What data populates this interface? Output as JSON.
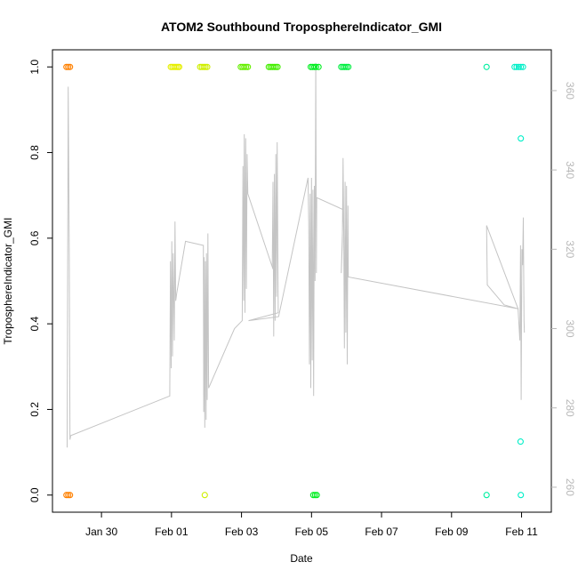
{
  "chart_data": {
    "type": "scatter",
    "title": "ATOM2 Southbound TroposphereIndicator_GMI",
    "xlabel": "Date",
    "ylabel": "TroposphereIndicator_GMI",
    "x_unit": "days from Jan 28",
    "xlim": [
      0.6,
      14.85
    ],
    "ylim": [
      -0.04,
      1.04
    ],
    "y2lim": [
      253.7,
      370.3
    ],
    "x_ticks": [
      {
        "value": 2,
        "label": "Jan 30"
      },
      {
        "value": 4,
        "label": "Feb 01"
      },
      {
        "value": 6,
        "label": "Feb 03"
      },
      {
        "value": 8,
        "label": "Feb 05"
      },
      {
        "value": 10,
        "label": "Feb 07"
      },
      {
        "value": 12,
        "label": "Feb 09"
      },
      {
        "value": 14,
        "label": "Feb 11"
      }
    ],
    "y_ticks": [
      {
        "value": 0.0,
        "label": "0.0"
      },
      {
        "value": 0.2,
        "label": "0.2"
      },
      {
        "value": 0.4,
        "label": "0.4"
      },
      {
        "value": 0.6,
        "label": "0.6"
      },
      {
        "value": 0.8,
        "label": "0.8"
      },
      {
        "value": 1.0,
        "label": "1.0"
      }
    ],
    "y2_ticks": [
      {
        "value": 260,
        "label": "260"
      },
      {
        "value": 280,
        "label": "280"
      },
      {
        "value": 300,
        "label": "300"
      },
      {
        "value": 320,
        "label": "320"
      },
      {
        "value": 340,
        "label": "340"
      },
      {
        "value": 360,
        "label": "360"
      }
    ],
    "secondary_series": {
      "color": "#c4c4c4",
      "axis": "right",
      "points": [
        [
          1.02,
          270
        ],
        [
          1.05,
          361
        ],
        [
          1.08,
          318
        ],
        [
          1.1,
          272
        ],
        [
          1.12,
          273
        ],
        [
          3.95,
          283
        ],
        [
          3.97,
          317
        ],
        [
          3.99,
          290
        ],
        [
          4.01,
          322
        ],
        [
          4.03,
          293
        ],
        [
          4.05,
          319
        ],
        [
          4.08,
          297
        ],
        [
          4.1,
          327
        ],
        [
          4.12,
          307
        ],
        [
          4.15,
          309
        ],
        [
          4.4,
          322
        ],
        [
          4.9,
          321
        ],
        [
          4.91,
          321
        ],
        [
          4.92,
          279
        ],
        [
          4.93,
          318
        ],
        [
          4.95,
          275
        ],
        [
          4.97,
          317
        ],
        [
          4.99,
          277
        ],
        [
          5.0,
          319
        ],
        [
          5.02,
          282
        ],
        [
          5.04,
          324
        ],
        [
          5.06,
          285
        ],
        [
          5.8,
          300
        ],
        [
          6.02,
          302
        ],
        [
          6.04,
          341
        ],
        [
          6.06,
          307
        ],
        [
          6.08,
          349
        ],
        [
          6.1,
          304
        ],
        [
          6.12,
          348
        ],
        [
          6.14,
          310
        ],
        [
          6.16,
          344
        ],
        [
          6.18,
          334
        ],
        [
          6.9,
          315
        ],
        [
          6.88,
          316
        ],
        [
          6.9,
          337
        ],
        [
          6.92,
          298
        ],
        [
          6.94,
          339
        ],
        [
          6.96,
          302
        ],
        [
          6.98,
          344
        ],
        [
          7.0,
          308
        ],
        [
          7.02,
          347
        ],
        [
          7.05,
          304
        ],
        [
          6.2,
          302
        ],
        [
          7.06,
          303
        ],
        [
          7.9,
          338
        ],
        [
          7.92,
          327
        ],
        [
          7.94,
          291
        ],
        [
          7.96,
          334
        ],
        [
          7.98,
          285
        ],
        [
          8.0,
          338
        ],
        [
          8.02,
          292
        ],
        [
          8.04,
          335
        ],
        [
          8.06,
          283
        ],
        [
          8.08,
          336
        ],
        [
          8.1,
          312
        ],
        [
          8.12,
          367
        ],
        [
          8.14,
          314
        ],
        [
          8.15,
          333
        ],
        [
          8.9,
          330
        ],
        [
          8.85,
          314
        ],
        [
          8.88,
          322
        ],
        [
          8.9,
          343
        ],
        [
          8.92,
          326
        ],
        [
          8.94,
          295
        ],
        [
          8.96,
          337
        ],
        [
          8.98,
          299
        ],
        [
          9.0,
          336
        ],
        [
          9.02,
          291
        ],
        [
          9.04,
          331
        ],
        [
          9.05,
          313
        ],
        [
          13.9,
          305
        ],
        [
          13.0,
          326
        ],
        [
          13.02,
          311
        ],
        [
          13.5,
          306
        ],
        [
          13.9,
          305
        ],
        [
          13.95,
          297
        ],
        [
          13.97,
          321
        ],
        [
          13.99,
          282
        ],
        [
          14.01,
          320
        ],
        [
          14.03,
          316
        ],
        [
          14.05,
          328
        ],
        [
          14.07,
          302
        ],
        [
          14.08,
          299
        ]
      ]
    },
    "series": [
      {
        "color": "#ff8000",
        "points": [
          [
            1.0,
            1
          ],
          [
            1.05,
            1
          ],
          [
            1.1,
            1
          ],
          [
            1.0,
            0
          ],
          [
            1.05,
            0
          ],
          [
            1.1,
            0
          ]
        ]
      },
      {
        "color": "#e6ef00",
        "points": [
          [
            3.98,
            1
          ],
          [
            4.03,
            1
          ],
          [
            4.08,
            1
          ],
          [
            4.13,
            1
          ],
          [
            4.18,
            1
          ],
          [
            4.22,
            1
          ]
        ]
      },
      {
        "color": "#cfef00",
        "points": [
          [
            4.82,
            1
          ],
          [
            4.87,
            1
          ],
          [
            4.92,
            1
          ],
          [
            4.97,
            1
          ],
          [
            5.02,
            1
          ],
          [
            4.95,
            0
          ]
        ]
      },
      {
        "color": "#66ef00",
        "points": [
          [
            5.98,
            1
          ],
          [
            6.03,
            1
          ],
          [
            6.08,
            1
          ],
          [
            6.13,
            1
          ],
          [
            6.18,
            1
          ]
        ]
      },
      {
        "color": "#44ef00",
        "points": [
          [
            6.78,
            1
          ],
          [
            6.83,
            1
          ],
          [
            6.88,
            1
          ],
          [
            6.93,
            1
          ],
          [
            6.98,
            1
          ],
          [
            7.03,
            1
          ]
        ]
      },
      {
        "color": "#00ef20",
        "points": [
          [
            7.98,
            1
          ],
          [
            8.03,
            1
          ],
          [
            8.08,
            1
          ],
          [
            8.13,
            1
          ],
          [
            8.2,
            1
          ],
          [
            8.05,
            0
          ],
          [
            8.1,
            0
          ],
          [
            8.15,
            0
          ]
        ]
      },
      {
        "color": "#00ef40",
        "points": [
          [
            8.85,
            1
          ],
          [
            8.9,
            1
          ],
          [
            8.95,
            1
          ],
          [
            9.0,
            1
          ],
          [
            9.05,
            1
          ]
        ]
      },
      {
        "color": "#00efa0",
        "points": [
          [
            13.0,
            1
          ],
          [
            13.0,
            0
          ]
        ]
      },
      {
        "color": "#00efc8",
        "points": [
          [
            13.8,
            1
          ],
          [
            13.86,
            1
          ],
          [
            13.92,
            1
          ],
          [
            13.98,
            1
          ],
          [
            14.04,
            1
          ],
          [
            13.98,
            0.833
          ],
          [
            13.97,
            0.125
          ],
          [
            13.98,
            0
          ]
        ]
      }
    ],
    "legend": "none",
    "grid": false
  }
}
